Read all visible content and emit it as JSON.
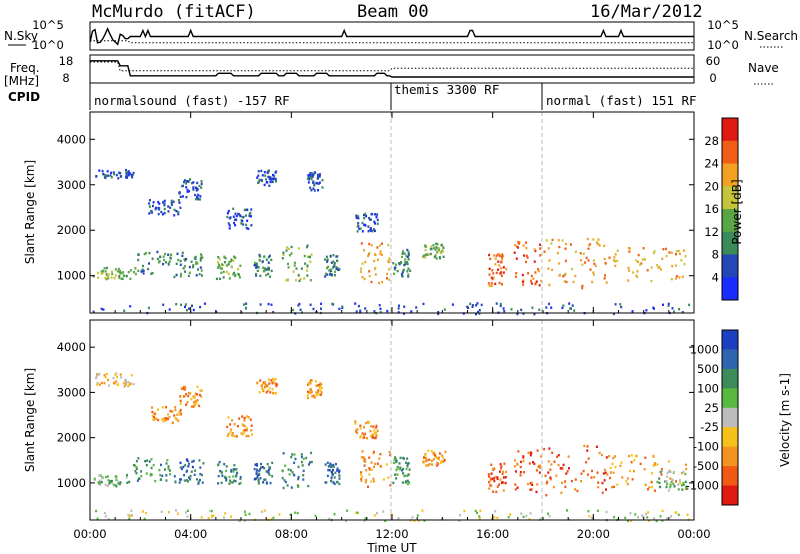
{
  "header": {
    "station": "McMurdo (fitACF)",
    "beam": "Beam 00",
    "date": "16/Mar/2012"
  },
  "strip": {
    "nsky_label": "N.Sky",
    "nsky_ticks": [
      "10^5",
      "10^0"
    ],
    "nsearch_label": "N.Search",
    "nsearch_ticks": [
      "10^5",
      "10^0"
    ],
    "freq_label": "Freq.",
    "freq_unit": "[MHz]",
    "freq_ticks": [
      "18",
      "8"
    ],
    "nave_label": "Nave",
    "nave_ticks": [
      "60",
      "0"
    ],
    "cpid_label": "CPID",
    "cpid_segments": [
      {
        "label": "normalsound (fast) -157 RF",
        "start_hour": 0,
        "end_hour": 12
      },
      {
        "label": "themis 3300 RF",
        "start_hour": 12,
        "end_hour": 18
      },
      {
        "label": "normal (fast) 151 RF",
        "start_hour": 18,
        "end_hour": 24
      }
    ]
  },
  "chart_data": [
    {
      "type": "heatmap",
      "panel": "power",
      "ylabel": "Slant Range [km]",
      "xlabel": "Time UT",
      "xlim_hours": [
        0,
        24
      ],
      "ylim": [
        180,
        4600
      ],
      "yticks": [
        "1000",
        "2000",
        "3000",
        "4000"
      ],
      "xticks": [
        "00:00",
        "04:00",
        "08:00",
        "12:00",
        "16:00",
        "20:00",
        "00:00"
      ],
      "colorbar": {
        "label": "Power [dB]",
        "ticks": [
          "4",
          "8",
          "12",
          "16",
          "20",
          "24",
          "28"
        ],
        "colors": [
          "#1a2bff",
          "#2346b8",
          "#3b8a5a",
          "#5aa544",
          "#c6c43a",
          "#f2a123",
          "#f05d14",
          "#e01a12"
        ]
      },
      "scatter_regions": [
        {
          "t0": 0.2,
          "t1": 1.7,
          "r0": 3150,
          "r1": 3350,
          "level": 1
        },
        {
          "t0": 0.1,
          "t1": 1.6,
          "r0": 950,
          "r1": 1200,
          "level": 3
        },
        {
          "t0": 1.7,
          "t1": 3.2,
          "r0": 1050,
          "r1": 1600,
          "level": 2
        },
        {
          "t0": 2.3,
          "t1": 3.6,
          "r0": 2350,
          "r1": 2700,
          "level": 1
        },
        {
          "t0": 3.5,
          "t1": 4.4,
          "r0": 2700,
          "r1": 3150,
          "level": 1
        },
        {
          "t0": 3.3,
          "t1": 4.5,
          "r0": 1000,
          "r1": 1550,
          "level": 2
        },
        {
          "t0": 5.0,
          "t1": 6.0,
          "r0": 950,
          "r1": 1500,
          "level": 3
        },
        {
          "t0": 5.4,
          "t1": 6.4,
          "r0": 2050,
          "r1": 2500,
          "level": 1
        },
        {
          "t0": 6.6,
          "t1": 7.4,
          "r0": 3000,
          "r1": 3350,
          "level": 1
        },
        {
          "t0": 6.5,
          "t1": 7.2,
          "r0": 1000,
          "r1": 1500,
          "level": 2
        },
        {
          "t0": 7.6,
          "t1": 8.8,
          "r0": 900,
          "r1": 1700,
          "level": 3
        },
        {
          "t0": 8.6,
          "t1": 9.2,
          "r0": 2900,
          "r1": 3300,
          "level": 1
        },
        {
          "t0": 9.3,
          "t1": 9.9,
          "r0": 1000,
          "r1": 1500,
          "level": 2
        },
        {
          "t0": 10.5,
          "t1": 11.4,
          "r0": 2000,
          "r1": 2400,
          "level": 1
        },
        {
          "t0": 10.7,
          "t1": 11.9,
          "r0": 850,
          "r1": 1750,
          "level": 5
        },
        {
          "t0": 12.0,
          "t1": 12.7,
          "r0": 1000,
          "r1": 1600,
          "level": 2
        },
        {
          "t0": 13.2,
          "t1": 14.1,
          "r0": 1400,
          "r1": 1750,
          "level": 3
        },
        {
          "t0": 15.8,
          "t1": 16.5,
          "r0": 800,
          "r1": 1500,
          "level": 6
        },
        {
          "t0": 16.8,
          "t1": 17.9,
          "r0": 800,
          "r1": 1800,
          "level": 6
        },
        {
          "t0": 18.0,
          "t1": 20.5,
          "r0": 750,
          "r1": 1850,
          "level": 5
        },
        {
          "t0": 20.5,
          "t1": 23.7,
          "r0": 850,
          "r1": 1650,
          "level": 5
        },
        {
          "t0": 0.0,
          "t1": 24.0,
          "r0": 180,
          "r1": 420,
          "level": 1
        }
      ]
    },
    {
      "type": "heatmap",
      "panel": "velocity",
      "ylabel": "Slant Range [km]",
      "xlabel": "Time UT",
      "xlim_hours": [
        0,
        24
      ],
      "ylim": [
        180,
        4600
      ],
      "yticks": [
        "1000",
        "2000",
        "3000",
        "4000"
      ],
      "xticks": [
        "00:00",
        "04:00",
        "08:00",
        "12:00",
        "16:00",
        "20:00",
        "00:00"
      ],
      "colorbar": {
        "label": "Velocity [m s-1]",
        "ticks": [
          "1000",
          "500",
          "100",
          "25",
          "-25",
          "-100",
          "-500",
          "-1000"
        ],
        "colors": [
          "#1c3fbf",
          "#2e64b0",
          "#3d8a5a",
          "#58b83f",
          "#bcbcbc",
          "#f5c21a",
          "#f39320",
          "#f05a14",
          "#e01a12"
        ]
      },
      "scatter_regions": [
        {
          "t0": 0.2,
          "t1": 1.7,
          "r0": 3150,
          "r1": 3450,
          "level": 5
        },
        {
          "t0": 0.1,
          "t1": 1.6,
          "r0": 950,
          "r1": 1200,
          "level": 3
        },
        {
          "t0": 1.7,
          "t1": 3.2,
          "r0": 1050,
          "r1": 1600,
          "level": 2
        },
        {
          "t0": 2.3,
          "t1": 3.6,
          "r0": 2350,
          "r1": 2700,
          "level": 6
        },
        {
          "t0": 3.5,
          "t1": 4.4,
          "r0": 2700,
          "r1": 3150,
          "level": 6
        },
        {
          "t0": 3.3,
          "t1": 4.5,
          "r0": 1000,
          "r1": 1550,
          "level": 1
        },
        {
          "t0": 5.0,
          "t1": 6.0,
          "r0": 950,
          "r1": 1500,
          "level": 2
        },
        {
          "t0": 5.4,
          "t1": 6.4,
          "r0": 2050,
          "r1": 2500,
          "level": 6
        },
        {
          "t0": 6.6,
          "t1": 7.4,
          "r0": 3000,
          "r1": 3350,
          "level": 6
        },
        {
          "t0": 6.5,
          "t1": 7.2,
          "r0": 1000,
          "r1": 1500,
          "level": 1
        },
        {
          "t0": 7.6,
          "t1": 8.8,
          "r0": 900,
          "r1": 1700,
          "level": 2
        },
        {
          "t0": 8.6,
          "t1": 9.2,
          "r0": 2900,
          "r1": 3300,
          "level": 6
        },
        {
          "t0": 9.3,
          "t1": 9.9,
          "r0": 1000,
          "r1": 1500,
          "level": 1
        },
        {
          "t0": 10.5,
          "t1": 11.4,
          "r0": 2000,
          "r1": 2400,
          "level": 6
        },
        {
          "t0": 10.7,
          "t1": 11.9,
          "r0": 850,
          "r1": 1750,
          "level": 6
        },
        {
          "t0": 12.0,
          "t1": 12.7,
          "r0": 1000,
          "r1": 1600,
          "level": 2
        },
        {
          "t0": 13.2,
          "t1": 14.1,
          "r0": 1400,
          "r1": 1750,
          "level": 6
        },
        {
          "t0": 15.8,
          "t1": 16.5,
          "r0": 800,
          "r1": 1500,
          "level": 7
        },
        {
          "t0": 16.8,
          "t1": 17.9,
          "r0": 800,
          "r1": 1800,
          "level": 7
        },
        {
          "t0": 18.0,
          "t1": 20.5,
          "r0": 750,
          "r1": 1850,
          "level": 7
        },
        {
          "t0": 20.5,
          "t1": 23.7,
          "r0": 850,
          "r1": 1650,
          "level": 6
        },
        {
          "t0": 22.5,
          "t1": 23.7,
          "r0": 850,
          "r1": 1300,
          "level": 3
        },
        {
          "t0": 0.0,
          "t1": 24.0,
          "r0": 180,
          "r1": 420,
          "level": 4
        }
      ]
    }
  ]
}
